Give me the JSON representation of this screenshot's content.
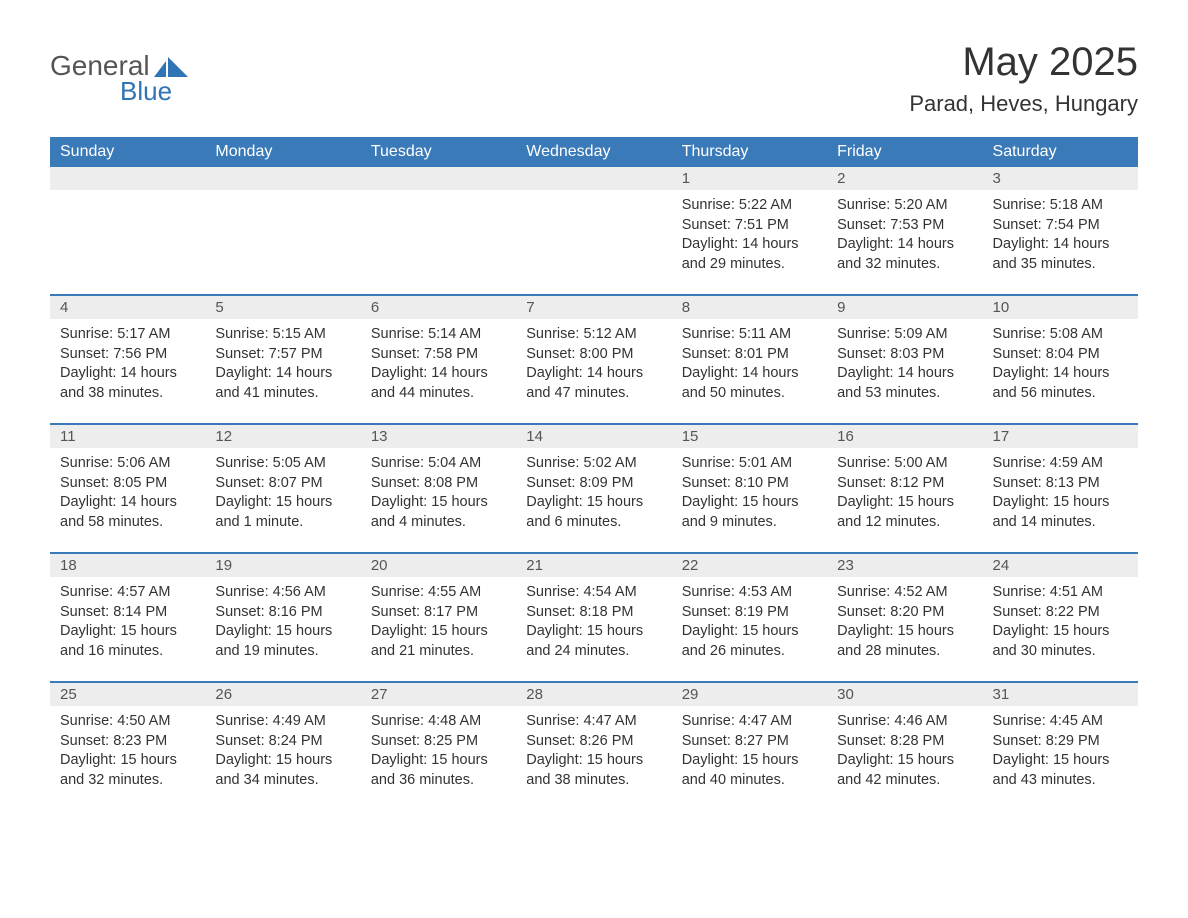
{
  "brand": {
    "word1": "General",
    "word2": "Blue",
    "color": "#2f74b5"
  },
  "title": "May 2025",
  "location": "Parad, Heves, Hungary",
  "colors": {
    "header_bg": "#3a7ab8",
    "header_text": "#ffffff",
    "daynum_bg": "#ededed",
    "text": "#333333",
    "rule": "#3a7ab8"
  },
  "weekdays": [
    "Sunday",
    "Monday",
    "Tuesday",
    "Wednesday",
    "Thursday",
    "Friday",
    "Saturday"
  ],
  "weeks": [
    [
      {
        "blank": true
      },
      {
        "blank": true
      },
      {
        "blank": true
      },
      {
        "blank": true
      },
      {
        "n": "1",
        "sr": "5:22 AM",
        "ss": "7:51 PM",
        "dl": "14 hours and 29 minutes."
      },
      {
        "n": "2",
        "sr": "5:20 AM",
        "ss": "7:53 PM",
        "dl": "14 hours and 32 minutes."
      },
      {
        "n": "3",
        "sr": "5:18 AM",
        "ss": "7:54 PM",
        "dl": "14 hours and 35 minutes."
      }
    ],
    [
      {
        "n": "4",
        "sr": "5:17 AM",
        "ss": "7:56 PM",
        "dl": "14 hours and 38 minutes."
      },
      {
        "n": "5",
        "sr": "5:15 AM",
        "ss": "7:57 PM",
        "dl": "14 hours and 41 minutes."
      },
      {
        "n": "6",
        "sr": "5:14 AM",
        "ss": "7:58 PM",
        "dl": "14 hours and 44 minutes."
      },
      {
        "n": "7",
        "sr": "5:12 AM",
        "ss": "8:00 PM",
        "dl": "14 hours and 47 minutes."
      },
      {
        "n": "8",
        "sr": "5:11 AM",
        "ss": "8:01 PM",
        "dl": "14 hours and 50 minutes."
      },
      {
        "n": "9",
        "sr": "5:09 AM",
        "ss": "8:03 PM",
        "dl": "14 hours and 53 minutes."
      },
      {
        "n": "10",
        "sr": "5:08 AM",
        "ss": "8:04 PM",
        "dl": "14 hours and 56 minutes."
      }
    ],
    [
      {
        "n": "11",
        "sr": "5:06 AM",
        "ss": "8:05 PM",
        "dl": "14 hours and 58 minutes."
      },
      {
        "n": "12",
        "sr": "5:05 AM",
        "ss": "8:07 PM",
        "dl": "15 hours and 1 minute."
      },
      {
        "n": "13",
        "sr": "5:04 AM",
        "ss": "8:08 PM",
        "dl": "15 hours and 4 minutes."
      },
      {
        "n": "14",
        "sr": "5:02 AM",
        "ss": "8:09 PM",
        "dl": "15 hours and 6 minutes."
      },
      {
        "n": "15",
        "sr": "5:01 AM",
        "ss": "8:10 PM",
        "dl": "15 hours and 9 minutes."
      },
      {
        "n": "16",
        "sr": "5:00 AM",
        "ss": "8:12 PM",
        "dl": "15 hours and 12 minutes."
      },
      {
        "n": "17",
        "sr": "4:59 AM",
        "ss": "8:13 PM",
        "dl": "15 hours and 14 minutes."
      }
    ],
    [
      {
        "n": "18",
        "sr": "4:57 AM",
        "ss": "8:14 PM",
        "dl": "15 hours and 16 minutes."
      },
      {
        "n": "19",
        "sr": "4:56 AM",
        "ss": "8:16 PM",
        "dl": "15 hours and 19 minutes."
      },
      {
        "n": "20",
        "sr": "4:55 AM",
        "ss": "8:17 PM",
        "dl": "15 hours and 21 minutes."
      },
      {
        "n": "21",
        "sr": "4:54 AM",
        "ss": "8:18 PM",
        "dl": "15 hours and 24 minutes."
      },
      {
        "n": "22",
        "sr": "4:53 AM",
        "ss": "8:19 PM",
        "dl": "15 hours and 26 minutes."
      },
      {
        "n": "23",
        "sr": "4:52 AM",
        "ss": "8:20 PM",
        "dl": "15 hours and 28 minutes."
      },
      {
        "n": "24",
        "sr": "4:51 AM",
        "ss": "8:22 PM",
        "dl": "15 hours and 30 minutes."
      }
    ],
    [
      {
        "n": "25",
        "sr": "4:50 AM",
        "ss": "8:23 PM",
        "dl": "15 hours and 32 minutes."
      },
      {
        "n": "26",
        "sr": "4:49 AM",
        "ss": "8:24 PM",
        "dl": "15 hours and 34 minutes."
      },
      {
        "n": "27",
        "sr": "4:48 AM",
        "ss": "8:25 PM",
        "dl": "15 hours and 36 minutes."
      },
      {
        "n": "28",
        "sr": "4:47 AM",
        "ss": "8:26 PM",
        "dl": "15 hours and 38 minutes."
      },
      {
        "n": "29",
        "sr": "4:47 AM",
        "ss": "8:27 PM",
        "dl": "15 hours and 40 minutes."
      },
      {
        "n": "30",
        "sr": "4:46 AM",
        "ss": "8:28 PM",
        "dl": "15 hours and 42 minutes."
      },
      {
        "n": "31",
        "sr": "4:45 AM",
        "ss": "8:29 PM",
        "dl": "15 hours and 43 minutes."
      }
    ]
  ],
  "labels": {
    "sunrise": "Sunrise: ",
    "sunset": "Sunset: ",
    "daylight": "Daylight: "
  }
}
